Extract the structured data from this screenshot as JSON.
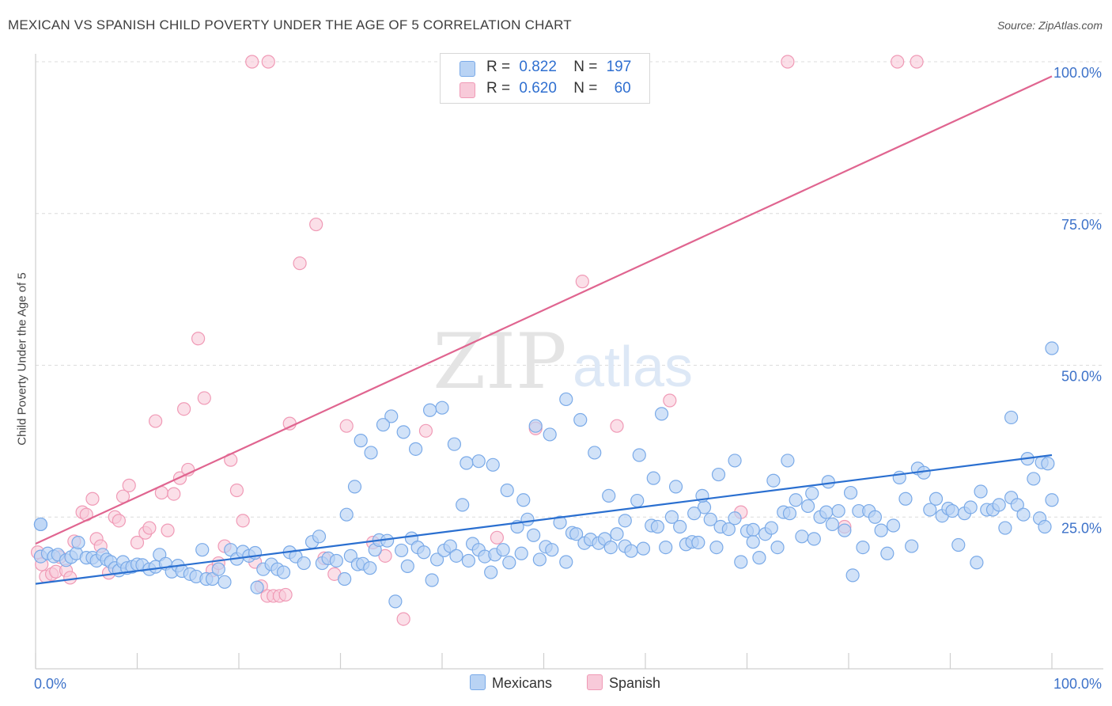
{
  "header": {
    "title": "MEXICAN VS SPANISH CHILD POVERTY UNDER THE AGE OF 5 CORRELATION CHART",
    "source": "Source: ZipAtlas.com"
  },
  "watermark": {
    "zip": "ZIP",
    "atlas": "atlas"
  },
  "legend_top": {
    "rows": [
      {
        "r_label": "R =",
        "r_value": "0.822",
        "n_label": "N =",
        "n_value": "197"
      },
      {
        "r_label": "R =",
        "r_value": "0.620",
        "n_label": "N =",
        "n_value": "60"
      }
    ]
  },
  "legend_bottom": {
    "mexicans": "Mexicans",
    "spanish": "Spanish"
  },
  "chart_data": {
    "type": "scatter",
    "title": "MEXICAN VS SPANISH CHILD POVERTY UNDER THE AGE OF 5 CORRELATION CHART",
    "xlabel": "",
    "ylabel": "Child Poverty Under the Age of 5",
    "xlim": [
      0,
      100
    ],
    "ylim": [
      0,
      100
    ],
    "x_tick_labels": [
      "0.0%",
      "100.0%"
    ],
    "y_tick_labels": [
      "25.0%",
      "50.0%",
      "75.0%",
      "100.0%"
    ],
    "y_ticks": [
      25,
      50,
      75,
      100
    ],
    "grid": true,
    "colors": {
      "mexicans": "#7aaae8",
      "mexicans_fill": "#b9d3f4",
      "spanish": "#f09ab6",
      "spanish_fill": "#f8cad9",
      "mex_line": "#2a6fd0",
      "spa_line": "#e06590",
      "axis_text": "#3d72c9"
    },
    "series": [
      {
        "name": "Mexicans",
        "r": 0.822,
        "n": 197,
        "trend": {
          "x": [
            0,
            100
          ],
          "y": [
            14.0,
            35.2
          ]
        },
        "points": [
          [
            0.5,
            23.8
          ],
          [
            0.5,
            18.5
          ],
          [
            1.2,
            19.0
          ],
          [
            1.8,
            18.5
          ],
          [
            2.2,
            18.8
          ],
          [
            3.0,
            17.9
          ],
          [
            3.5,
            18.4
          ],
          [
            4.0,
            19.0
          ],
          [
            4.2,
            20.8
          ],
          [
            5.0,
            18.3
          ],
          [
            5.6,
            18.3
          ],
          [
            6.0,
            17.8
          ],
          [
            6.6,
            18.8
          ],
          [
            7.0,
            18.0
          ],
          [
            7.4,
            17.6
          ],
          [
            7.8,
            16.6
          ],
          [
            8.2,
            16.2
          ],
          [
            8.6,
            17.6
          ],
          [
            9.0,
            16.6
          ],
          [
            9.5,
            16.8
          ],
          [
            10.0,
            17.2
          ],
          [
            10.5,
            17.1
          ],
          [
            11.2,
            16.4
          ],
          [
            11.8,
            16.8
          ],
          [
            12.2,
            18.8
          ],
          [
            12.8,
            17.3
          ],
          [
            13.4,
            16.0
          ],
          [
            14.0,
            17.0
          ],
          [
            14.4,
            16.1
          ],
          [
            15.2,
            15.6
          ],
          [
            15.8,
            15.2
          ],
          [
            16.4,
            19.6
          ],
          [
            16.8,
            14.8
          ],
          [
            17.4,
            14.8
          ],
          [
            18.0,
            16.4
          ],
          [
            18.6,
            14.3
          ],
          [
            19.2,
            19.6
          ],
          [
            19.8,
            18.1
          ],
          [
            20.4,
            19.3
          ],
          [
            21.0,
            18.6
          ],
          [
            21.6,
            19.1
          ],
          [
            21.8,
            13.4
          ],
          [
            22.4,
            16.4
          ],
          [
            23.2,
            17.2
          ],
          [
            23.8,
            16.4
          ],
          [
            24.4,
            15.9
          ],
          [
            25.0,
            19.2
          ],
          [
            25.6,
            18.5
          ],
          [
            26.4,
            17.4
          ],
          [
            27.2,
            20.9
          ],
          [
            27.9,
            21.8
          ],
          [
            28.2,
            17.4
          ],
          [
            28.8,
            18.2
          ],
          [
            29.6,
            17.8
          ],
          [
            30.4,
            14.8
          ],
          [
            31.0,
            18.6
          ],
          [
            31.7,
            17.2
          ],
          [
            32.2,
            17.3
          ],
          [
            32.9,
            16.6
          ],
          [
            33.4,
            19.6
          ],
          [
            33.8,
            21.2
          ],
          [
            34.6,
            21.1
          ],
          [
            35.4,
            11.1
          ],
          [
            36.0,
            19.5
          ],
          [
            36.6,
            16.9
          ],
          [
            37.0,
            21.5
          ],
          [
            37.6,
            20.0
          ],
          [
            38.2,
            19.2
          ],
          [
            39.0,
            14.6
          ],
          [
            39.5,
            18.0
          ],
          [
            40.2,
            19.5
          ],
          [
            40.8,
            20.2
          ],
          [
            41.4,
            18.6
          ],
          [
            42.0,
            27.0
          ],
          [
            42.6,
            17.8
          ],
          [
            43.0,
            20.6
          ],
          [
            43.6,
            19.6
          ],
          [
            44.2,
            18.5
          ],
          [
            44.8,
            15.9
          ],
          [
            45.2,
            18.8
          ],
          [
            46.0,
            19.6
          ],
          [
            46.6,
            17.5
          ],
          [
            47.4,
            23.4
          ],
          [
            47.8,
            19.0
          ],
          [
            48.4,
            24.6
          ],
          [
            49.0,
            22.0
          ],
          [
            49.6,
            18.0
          ],
          [
            50.2,
            20.1
          ],
          [
            50.8,
            19.6
          ],
          [
            51.6,
            24.1
          ],
          [
            52.2,
            17.6
          ],
          [
            52.8,
            22.4
          ],
          [
            53.2,
            22.2
          ],
          [
            54.0,
            20.7
          ],
          [
            54.6,
            21.3
          ],
          [
            55.4,
            20.7
          ],
          [
            56.0,
            21.4
          ],
          [
            56.6,
            20.0
          ],
          [
            57.2,
            22.2
          ],
          [
            58.0,
            20.2
          ],
          [
            58.6,
            19.4
          ],
          [
            59.2,
            27.7
          ],
          [
            59.8,
            19.8
          ],
          [
            60.6,
            23.6
          ],
          [
            61.2,
            23.4
          ],
          [
            62.0,
            20.0
          ],
          [
            62.6,
            25.0
          ],
          [
            63.4,
            23.4
          ],
          [
            64.0,
            20.5
          ],
          [
            64.6,
            20.9
          ],
          [
            65.2,
            20.8
          ],
          [
            65.8,
            26.6
          ],
          [
            66.4,
            24.6
          ],
          [
            67.0,
            20.0
          ],
          [
            67.4,
            23.4
          ],
          [
            68.2,
            23.0
          ],
          [
            68.8,
            24.8
          ],
          [
            69.4,
            17.6
          ],
          [
            70.0,
            22.7
          ],
          [
            70.6,
            22.9
          ],
          [
            71.2,
            18.3
          ],
          [
            71.8,
            22.2
          ],
          [
            72.4,
            23.2
          ],
          [
            73.0,
            20.0
          ],
          [
            73.6,
            25.8
          ],
          [
            74.2,
            25.6
          ],
          [
            74.8,
            27.8
          ],
          [
            75.4,
            21.8
          ],
          [
            76.0,
            26.8
          ],
          [
            76.6,
            21.4
          ],
          [
            77.2,
            25.0
          ],
          [
            77.8,
            25.8
          ],
          [
            78.4,
            23.8
          ],
          [
            79.0,
            26.0
          ],
          [
            79.6,
            22.8
          ],
          [
            80.4,
            15.4
          ],
          [
            81.0,
            26.0
          ],
          [
            81.4,
            20.0
          ],
          [
            82.0,
            26.0
          ],
          [
            82.6,
            25.0
          ],
          [
            83.2,
            22.8
          ],
          [
            83.8,
            19.0
          ],
          [
            84.4,
            23.6
          ],
          [
            85.0,
            31.5
          ],
          [
            85.6,
            28.0
          ],
          [
            86.2,
            20.2
          ],
          [
            86.8,
            33.0
          ],
          [
            87.4,
            32.3
          ],
          [
            88.0,
            26.2
          ],
          [
            88.6,
            28.0
          ],
          [
            89.2,
            25.2
          ],
          [
            89.8,
            26.4
          ],
          [
            90.2,
            26.0
          ],
          [
            90.8,
            20.4
          ],
          [
            91.4,
            25.6
          ],
          [
            92.0,
            26.6
          ],
          [
            92.6,
            17.5
          ],
          [
            93.0,
            29.2
          ],
          [
            93.6,
            26.2
          ],
          [
            94.2,
            26.2
          ],
          [
            94.8,
            27.0
          ],
          [
            95.4,
            23.2
          ],
          [
            96.0,
            28.2
          ],
          [
            96.6,
            27.0
          ],
          [
            97.2,
            25.4
          ],
          [
            97.6,
            34.6
          ],
          [
            98.2,
            31.3
          ],
          [
            98.8,
            24.8
          ],
          [
            99.3,
            23.4
          ],
          [
            99.0,
            34.0
          ],
          [
            99.6,
            33.8
          ],
          [
            100.0,
            27.8
          ],
          [
            80.2,
            29.0
          ],
          [
            78.0,
            30.8
          ],
          [
            76.4,
            28.9
          ],
          [
            74.0,
            34.3
          ],
          [
            72.6,
            31.0
          ],
          [
            70.6,
            20.9
          ],
          [
            68.8,
            34.3
          ],
          [
            67.2,
            32.0
          ],
          [
            65.6,
            28.5
          ],
          [
            64.8,
            25.6
          ],
          [
            63.0,
            30.0
          ],
          [
            61.6,
            42.0
          ],
          [
            60.8,
            31.4
          ],
          [
            59.4,
            35.2
          ],
          [
            58.0,
            24.4
          ],
          [
            56.4,
            28.5
          ],
          [
            55.0,
            35.6
          ],
          [
            53.6,
            41.0
          ],
          [
            52.2,
            44.4
          ],
          [
            50.6,
            38.6
          ],
          [
            49.2,
            40.0
          ],
          [
            48.0,
            27.8
          ],
          [
            46.4,
            29.4
          ],
          [
            45.0,
            33.6
          ],
          [
            43.6,
            34.2
          ],
          [
            42.4,
            33.9
          ],
          [
            41.2,
            37.0
          ],
          [
            40.0,
            43.0
          ],
          [
            38.8,
            42.6
          ],
          [
            37.4,
            36.2
          ],
          [
            36.2,
            39.0
          ],
          [
            35.0,
            41.6
          ],
          [
            34.2,
            40.2
          ],
          [
            33.0,
            35.6
          ],
          [
            32.0,
            37.6
          ],
          [
            31.4,
            30.0
          ],
          [
            30.6,
            25.4
          ]
        ]
      },
      {
        "name": "Spanish",
        "r": 0.62,
        "n": 60,
        "trend": {
          "x": [
            0,
            100
          ],
          "y": [
            20.6,
            97.6
          ]
        },
        "points": [
          [
            0.2,
            19.2
          ],
          [
            0.6,
            17.2
          ],
          [
            1.0,
            15.2
          ],
          [
            1.6,
            15.6
          ],
          [
            2.0,
            16.0
          ],
          [
            2.4,
            18.4
          ],
          [
            3.0,
            16.2
          ],
          [
            3.4,
            15.0
          ],
          [
            3.8,
            21.0
          ],
          [
            4.6,
            25.8
          ],
          [
            5.0,
            25.4
          ],
          [
            5.6,
            28.0
          ],
          [
            6.0,
            21.4
          ],
          [
            6.4,
            20.2
          ],
          [
            7.2,
            15.8
          ],
          [
            7.8,
            25.0
          ],
          [
            8.2,
            24.4
          ],
          [
            8.6,
            28.4
          ],
          [
            9.2,
            30.2
          ],
          [
            10.0,
            20.8
          ],
          [
            10.8,
            22.4
          ],
          [
            11.2,
            23.2
          ],
          [
            11.8,
            40.8
          ],
          [
            12.4,
            29.0
          ],
          [
            13.0,
            22.8
          ],
          [
            13.6,
            28.8
          ],
          [
            14.2,
            31.4
          ],
          [
            14.6,
            42.8
          ],
          [
            15.0,
            32.8
          ],
          [
            16.0,
            54.4
          ],
          [
            16.6,
            44.6
          ],
          [
            17.4,
            16.2
          ],
          [
            18.0,
            17.4
          ],
          [
            18.6,
            20.2
          ],
          [
            19.2,
            34.4
          ],
          [
            19.8,
            29.4
          ],
          [
            20.4,
            24.4
          ],
          [
            21.6,
            17.6
          ],
          [
            22.2,
            13.6
          ],
          [
            22.8,
            12.0
          ],
          [
            23.4,
            12.0
          ],
          [
            24.0,
            12.0
          ],
          [
            24.6,
            12.2
          ],
          [
            25.0,
            40.4
          ],
          [
            26.0,
            66.8
          ],
          [
            27.6,
            73.2
          ],
          [
            28.4,
            18.2
          ],
          [
            29.4,
            15.6
          ],
          [
            30.6,
            40.0
          ],
          [
            33.2,
            20.8
          ],
          [
            34.4,
            18.6
          ],
          [
            36.2,
            8.2
          ],
          [
            38.4,
            39.2
          ],
          [
            45.4,
            21.6
          ],
          [
            49.2,
            39.6
          ],
          [
            53.8,
            63.8
          ],
          [
            57.2,
            40.0
          ],
          [
            62.4,
            44.2
          ],
          [
            69.4,
            25.8
          ],
          [
            79.6,
            23.4
          ]
        ]
      }
    ]
  }
}
